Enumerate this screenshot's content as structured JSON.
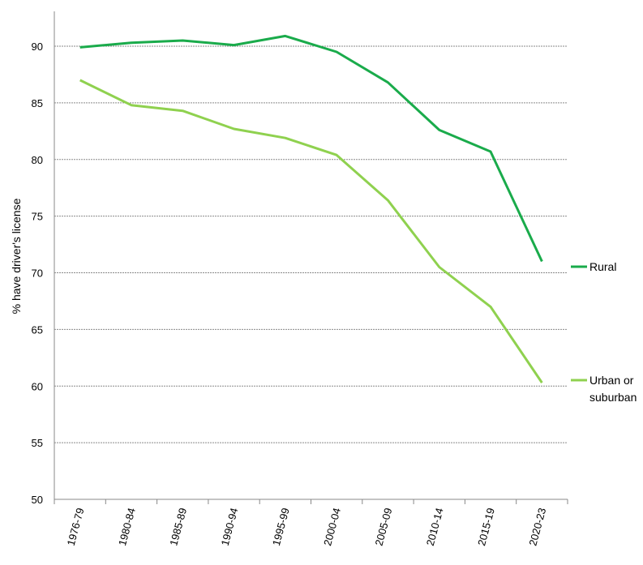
{
  "chart_data": {
    "type": "line",
    "title": "",
    "xlabel": "",
    "ylabel": "% have driver's license",
    "categories": [
      "1976-79",
      "1980-84",
      "1985-89",
      "1990-94",
      "1995-99",
      "2000-04",
      "2005-09",
      "2010-14",
      "2015-19",
      "2020-23"
    ],
    "ylim": [
      50,
      90
    ],
    "yticks": [
      50,
      55,
      60,
      65,
      70,
      75,
      80,
      85,
      90
    ],
    "grid": true,
    "legend": "direct labels at line ends",
    "series": [
      {
        "name": "Rural",
        "color": "#1aab4b",
        "values": [
          89.9,
          90.3,
          90.5,
          90.1,
          90.9,
          89.5,
          86.8,
          82.6,
          80.7,
          71.0
        ]
      },
      {
        "name": "Urban or suburban",
        "label_lines": [
          "Urban or",
          "suburban"
        ],
        "color": "#8fd14f",
        "values": [
          87.0,
          84.8,
          84.3,
          82.7,
          81.9,
          80.4,
          76.4,
          70.5,
          67.0,
          60.3
        ]
      }
    ]
  }
}
